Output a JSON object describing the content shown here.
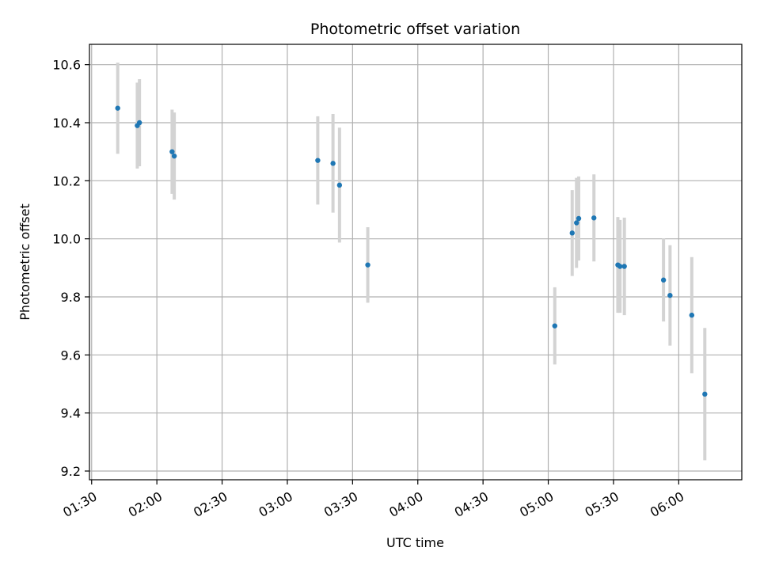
{
  "chart_data": {
    "type": "scatter",
    "title": "Photometric offset variation",
    "xlabel": "UTC time",
    "ylabel": "Photometric offset",
    "x_ticks": [
      "01:30",
      "02:00",
      "02:30",
      "03:00",
      "03:30",
      "04:00",
      "04:30",
      "05:00",
      "05:30",
      "06:00"
    ],
    "y_ticks": [
      "9.2",
      "9.4",
      "9.6",
      "9.8",
      "10.0",
      "10.2",
      "10.4",
      "10.6"
    ],
    "ylim": [
      9.17,
      10.67
    ],
    "xlim": [
      "01:29",
      "06:29"
    ],
    "grid": true,
    "colors": {
      "point": "#1f77b4",
      "errorbar": "#d3d3d3",
      "grid": "#b0b0b0"
    },
    "points": [
      {
        "t": "01:42",
        "y": 10.45,
        "err": 0.157
      },
      {
        "t": "01:51",
        "y": 10.39,
        "err": 0.148
      },
      {
        "t": "01:52",
        "y": 10.4,
        "err": 0.15
      },
      {
        "t": "02:07",
        "y": 10.3,
        "err": 0.145
      },
      {
        "t": "02:08",
        "y": 10.285,
        "err": 0.15
      },
      {
        "t": "03:14",
        "y": 10.27,
        "err": 0.152
      },
      {
        "t": "03:21",
        "y": 10.26,
        "err": 0.17
      },
      {
        "t": "03:24",
        "y": 10.185,
        "err": 0.198
      },
      {
        "t": "03:37",
        "y": 9.91,
        "err": 0.13
      },
      {
        "t": "05:03",
        "y": 9.7,
        "err": 0.133
      },
      {
        "t": "05:11",
        "y": 10.02,
        "err": 0.148
      },
      {
        "t": "05:13",
        "y": 10.055,
        "err": 0.155
      },
      {
        "t": "05:14",
        "y": 10.07,
        "err": 0.145
      },
      {
        "t": "05:21",
        "y": 10.072,
        "err": 0.15
      },
      {
        "t": "05:32",
        "y": 9.91,
        "err": 0.165
      },
      {
        "t": "05:33",
        "y": 9.905,
        "err": 0.16
      },
      {
        "t": "05:35",
        "y": 9.905,
        "err": 0.168
      },
      {
        "t": "05:53",
        "y": 9.858,
        "err": 0.143
      },
      {
        "t": "05:56",
        "y": 9.805,
        "err": 0.173
      },
      {
        "t": "06:06",
        "y": 9.737,
        "err": 0.2
      },
      {
        "t": "06:12",
        "y": 9.465,
        "err": 0.228
      }
    ]
  }
}
